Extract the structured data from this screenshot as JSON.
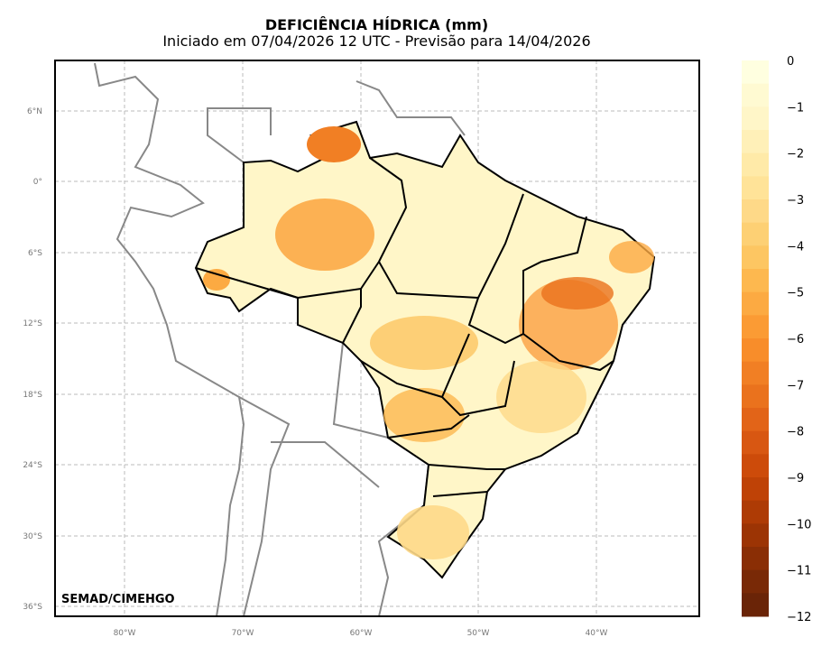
{
  "title": "DEFICIÊNCIA HÍDRICA (mm)",
  "subtitle": "Iniciado em 07/04/2026 12 UTC - Previsão para 14/04/2026",
  "credit": "SEMAD/CIMEHGO",
  "map": {
    "lon_ticks": [
      "80°W",
      "70°W",
      "60°W",
      "50°W",
      "40°W"
    ],
    "lat_ticks": [
      "6°N",
      "0°",
      "6°S",
      "12°S",
      "18°S",
      "24°S",
      "30°S",
      "36°S"
    ]
  },
  "colorbar": {
    "labels": [
      "0",
      "−1",
      "−2",
      "−3",
      "−4",
      "−5",
      "−6",
      "−7",
      "−8",
      "−9",
      "−10",
      "−11",
      "−12"
    ],
    "colors": [
      "#ffffe0",
      "#fffad2",
      "#fff6c8",
      "#fff0b8",
      "#ffeaa8",
      "#ffe398",
      "#fed988",
      "#fdd074",
      "#fdc662",
      "#fdb84f",
      "#fcaa42",
      "#fb9b34",
      "#f88d2a",
      "#f17f24",
      "#ea721d",
      "#e26418",
      "#d85712",
      "#cd4b0a",
      "#bf4206",
      "#ae3b05",
      "#9c3404",
      "#8a2e05",
      "#792906",
      "#6a2407"
    ]
  }
}
